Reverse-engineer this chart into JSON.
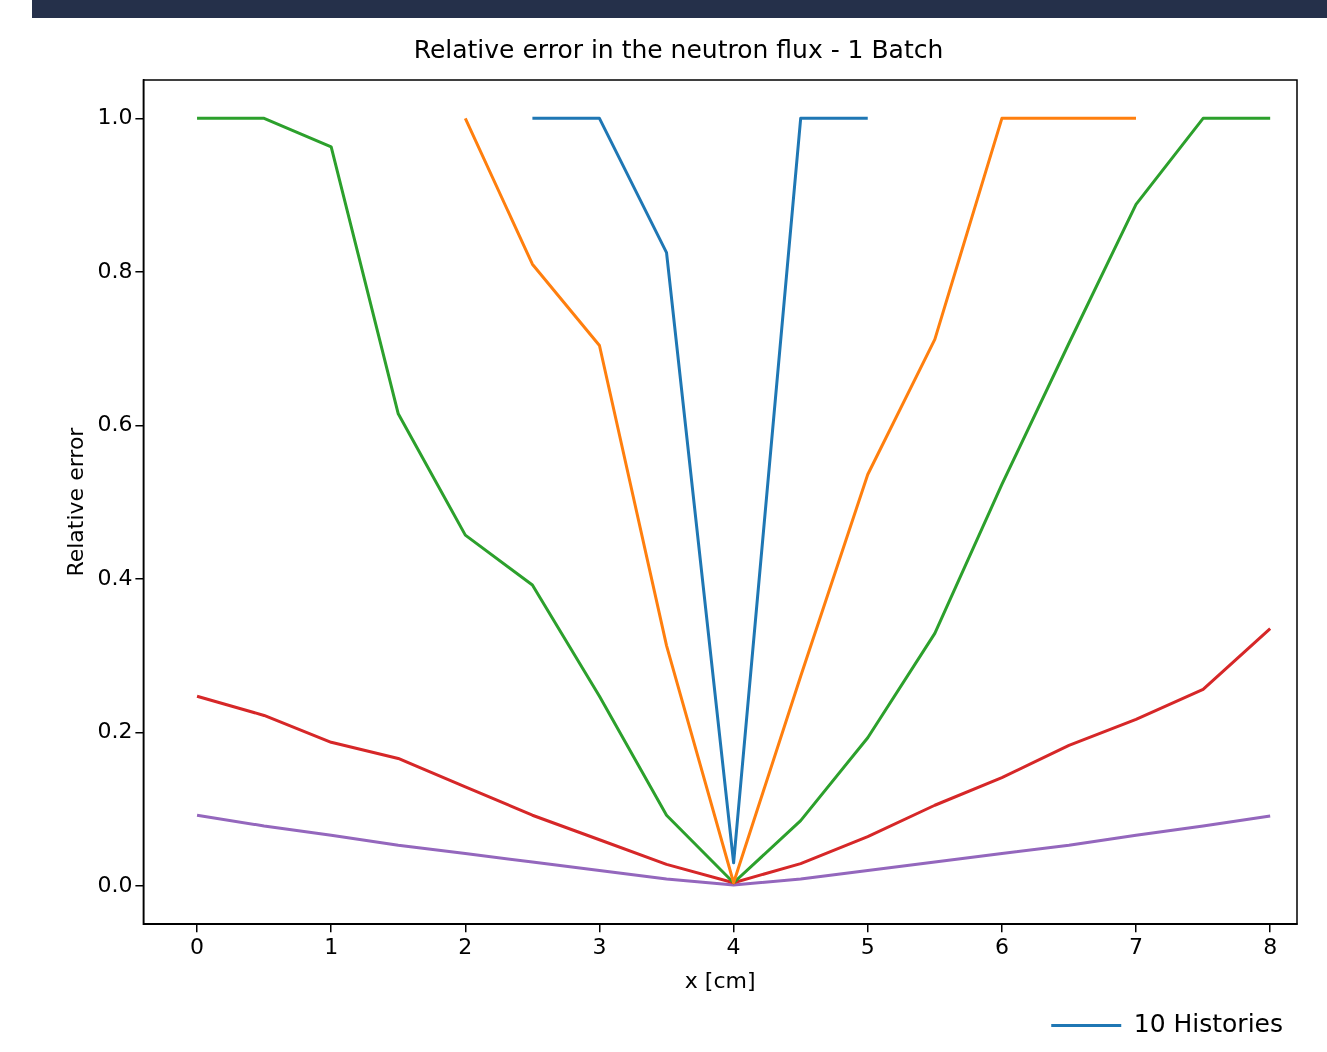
{
  "chart_data": {
    "type": "line",
    "title": "Relative error in the neutron flux - 1 Batch",
    "xlabel": "x [cm]",
    "ylabel": "Relative error",
    "x": [
      0,
      0.5,
      1,
      1.5,
      2,
      2.5,
      3,
      3.5,
      4,
      4.5,
      5,
      5.5,
      6,
      6.5,
      7,
      7.5,
      8
    ],
    "series": [
      {
        "name": "10 Histories",
        "color": "#1f77b4",
        "values": [
          null,
          null,
          null,
          null,
          null,
          1.0,
          1.0,
          0.825,
          0.03,
          1.0,
          1.0,
          null,
          null,
          null,
          null,
          null,
          null
        ]
      },
      {
        "color": "#ff7f0e",
        "values": [
          null,
          null,
          null,
          null,
          1.0,
          0.81,
          0.704,
          0.313,
          0.004,
          0.273,
          0.536,
          0.712,
          1.0,
          1.0,
          1.0,
          null,
          null
        ]
      },
      {
        "color": "#2ca02c",
        "values": [
          1.0,
          1.0,
          0.963,
          0.615,
          0.457,
          0.392,
          0.247,
          0.092,
          0.004,
          0.085,
          0.193,
          0.329,
          0.523,
          0.707,
          0.888,
          1.0,
          1.0
        ]
      },
      {
        "color": "#d62728",
        "values": [
          0.247,
          0.222,
          0.187,
          0.166,
          0.129,
          0.092,
          0.06,
          0.028,
          0.004,
          0.029,
          0.064,
          0.105,
          0.141,
          0.183,
          0.217,
          0.256,
          0.335
        ]
      },
      {
        "color": "#9467bd",
        "values": [
          0.092,
          0.078,
          0.066,
          0.053,
          0.042,
          0.031,
          0.02,
          0.009,
          0.001,
          0.009,
          0.02,
          0.031,
          0.042,
          0.053,
          0.066,
          0.078,
          0.091
        ]
      }
    ],
    "xlim": [
      -0.4,
      8.2
    ],
    "ylim": [
      -0.05,
      1.05
    ],
    "xticks": [
      0,
      1,
      2,
      3,
      4,
      5,
      6,
      7,
      8
    ],
    "yticks": [
      {
        "value": 0,
        "label": "0.0"
      },
      {
        "value": 0.2,
        "label": "0.2"
      },
      {
        "value": 0.4,
        "label": "0.4"
      },
      {
        "value": 0.6,
        "label": "0.6"
      },
      {
        "value": 0.8,
        "label": "0.8"
      },
      {
        "value": 1,
        "label": "1.0"
      }
    ],
    "grid": false,
    "legend": "bottom right",
    "line_style": "solid",
    "marker": "none"
  }
}
